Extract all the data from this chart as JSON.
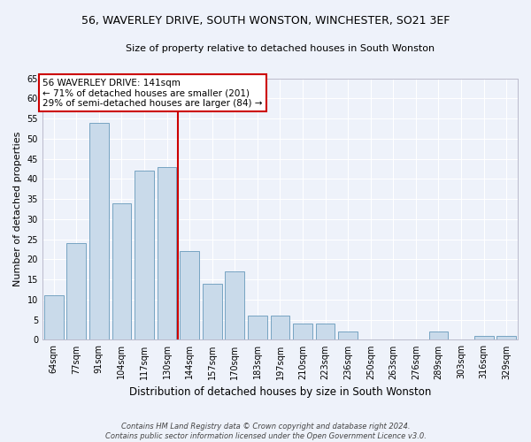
{
  "title": "56, WAVERLEY DRIVE, SOUTH WONSTON, WINCHESTER, SO21 3EF",
  "subtitle": "Size of property relative to detached houses in South Wonston",
  "xlabel": "Distribution of detached houses by size in South Wonston",
  "ylabel": "Number of detached properties",
  "categories": [
    "64sqm",
    "77sqm",
    "91sqm",
    "104sqm",
    "117sqm",
    "130sqm",
    "144sqm",
    "157sqm",
    "170sqm",
    "183sqm",
    "197sqm",
    "210sqm",
    "223sqm",
    "236sqm",
    "250sqm",
    "263sqm",
    "276sqm",
    "289sqm",
    "303sqm",
    "316sqm",
    "329sqm"
  ],
  "values": [
    11,
    24,
    54,
    34,
    42,
    43,
    22,
    14,
    17,
    6,
    6,
    4,
    4,
    2,
    0,
    0,
    0,
    2,
    0,
    1,
    1
  ],
  "bar_color": "#c9daea",
  "bar_edge_color": "#6699bb",
  "property_line_index": 6,
  "property_label": "56 WAVERLEY DRIVE: 141sqm",
  "annotation_line1": "← 71% of detached houses are smaller (201)",
  "annotation_line2": "29% of semi-detached houses are larger (84) →",
  "annotation_box_color": "#ffffff",
  "annotation_box_edge_color": "#cc0000",
  "vline_color": "#cc0000",
  "footer1": "Contains HM Land Registry data © Crown copyright and database right 2024.",
  "footer2": "Contains public sector information licensed under the Open Government Licence v3.0.",
  "ylim": [
    0,
    65
  ],
  "bg_color": "#eef2fa",
  "grid_color": "#ffffff",
  "title_fontsize": 9,
  "subtitle_fontsize": 8,
  "xlabel_fontsize": 8.5,
  "ylabel_fontsize": 8,
  "tick_fontsize": 7,
  "footer_fontsize": 6
}
